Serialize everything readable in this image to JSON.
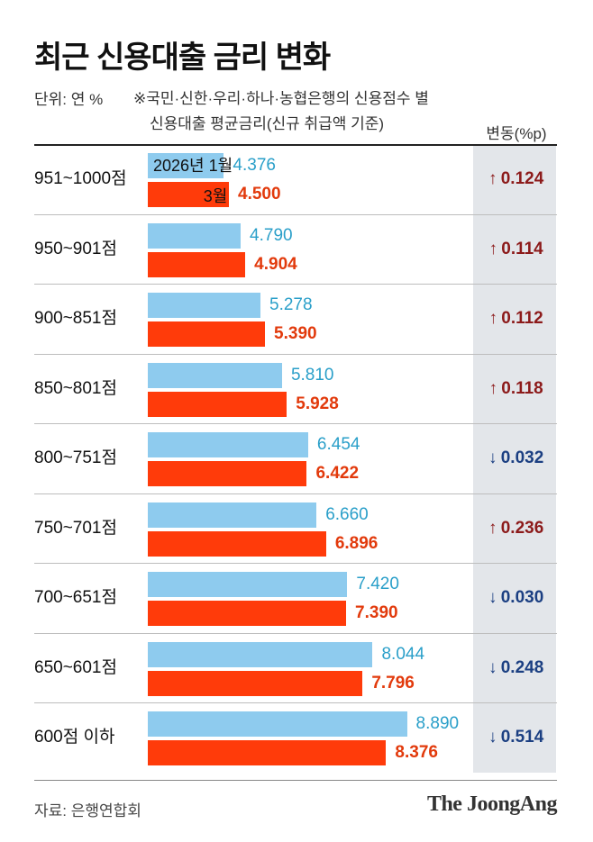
{
  "title": "최근 신용대출 금리 변화",
  "unit": "단위: 연 %",
  "note_line1": "※국민·신한·우리·하나·농협은행의 신용점수 별",
  "note_line2": "신용대출 평균금리(신규 취급액 기준)",
  "change_header": "변동(%p)",
  "legend": {
    "prev": "2026년 1월",
    "curr": "3월"
  },
  "source": "자료: 은행연합회",
  "brand": "The JoongAng",
  "colors": {
    "prev": "#8ecbee",
    "curr": "#ff3b0a",
    "up": "#8c1a1a",
    "down": "#1b3f82"
  },
  "chart_data": {
    "type": "bar",
    "orientation": "horizontal",
    "title": "최근 신용대출 금리 변화",
    "categories": [
      "951~1000점",
      "950~901점",
      "900~851점",
      "850~801점",
      "800~751점",
      "750~701점",
      "700~651점",
      "650~601점",
      "600점 이하"
    ],
    "series": [
      {
        "name": "2026년 1월",
        "values": [
          "4.376",
          "4.790",
          "5.278",
          "5.810",
          "6.454",
          "6.660",
          "7.420",
          "8.044",
          "8.890"
        ]
      },
      {
        "name": "3월",
        "values": [
          "4.500",
          "4.904",
          "5.390",
          "5.928",
          "6.422",
          "6.896",
          "7.390",
          "7.796",
          "8.376"
        ]
      }
    ],
    "change": [
      "0.124",
      "0.114",
      "0.112",
      "0.118",
      "0.032",
      "0.236",
      "0.030",
      "0.248",
      "0.514"
    ],
    "direction": [
      "up",
      "up",
      "up",
      "up",
      "down",
      "up",
      "down",
      "down",
      "down"
    ],
    "xlim": [
      2.5,
      9.0
    ],
    "legend": "inside-first-row"
  }
}
